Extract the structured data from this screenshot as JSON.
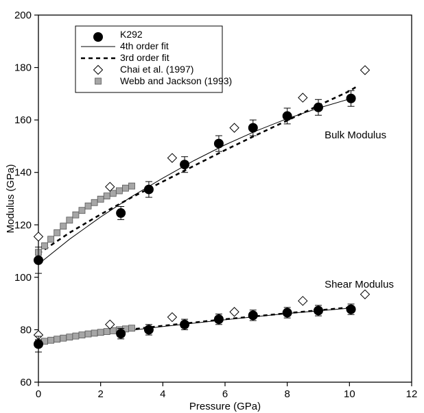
{
  "chart_data": {
    "type": "scatter",
    "xlabel": "Pressure (GPa)",
    "ylabel": "Modulus (GPa)",
    "xlim": [
      0,
      12
    ],
    "ylim": [
      60,
      200
    ],
    "xticks": [
      0,
      2,
      4,
      6,
      8,
      10,
      12
    ],
    "yticks": [
      60,
      80,
      100,
      120,
      140,
      160,
      180,
      200
    ],
    "grid": false,
    "legend_position": "top-left",
    "annotations": [
      {
        "text": "Bulk Modulus",
        "x": 9.2,
        "y": 153
      },
      {
        "text": "Shear Modulus",
        "x": 9.2,
        "y": 96
      }
    ],
    "series": [
      {
        "name": "K292",
        "marker": "filled-circle",
        "color": "#000000",
        "groups": [
          {
            "label": "Bulk Modulus",
            "x": [
              0.0,
              2.65,
              3.55,
              4.7,
              5.8,
              6.9,
              8.0,
              9.0,
              10.05
            ],
            "y": [
              106.5,
              124.5,
              133.5,
              143.0,
              151.0,
              157.0,
              161.5,
              164.8,
              168.2
            ],
            "err": [
              5.0,
              2.5,
              3.0,
              3.0,
              3.0,
              3.0,
              3.0,
              3.0,
              3.0
            ]
          },
          {
            "label": "Shear Modulus",
            "x": [
              0.0,
              2.65,
              3.55,
              4.7,
              5.8,
              6.9,
              8.0,
              9.0,
              10.05
            ],
            "y": [
              74.5,
              78.5,
              80.0,
              82.0,
              84.0,
              85.5,
              86.5,
              87.3,
              87.8
            ],
            "err": [
              3.0,
              2.0,
              2.0,
              2.0,
              2.0,
              2.0,
              2.0,
              2.0,
              2.0
            ]
          }
        ]
      },
      {
        "name": "4th order fit",
        "style": "solid-line",
        "color": "#000000",
        "groups": [
          {
            "label": "Bulk Modulus",
            "x": [
              0,
              1,
              2,
              3,
              4,
              5,
              6,
              7,
              8,
              9,
              10
            ],
            "y": [
              105.0,
              114.5,
              123.0,
              130.8,
              137.8,
              144.5,
              150.5,
              155.8,
              160.5,
              164.5,
              168.0
            ]
          },
          {
            "label": "Shear Modulus",
            "x": [
              0,
              2,
              4,
              6,
              8,
              10
            ],
            "y": [
              75.0,
              78.4,
              81.2,
              83.8,
              86.2,
              88.2
            ]
          }
        ]
      },
      {
        "name": "3rd order fit",
        "style": "dashed-line",
        "color": "#000000",
        "groups": [
          {
            "label": "Bulk Modulus",
            "x": [
              0,
              1,
              2,
              3,
              4,
              5,
              6,
              7,
              8,
              9,
              10,
              10.2
            ],
            "y": [
              109.0,
              117.0,
              124.0,
              130.5,
              136.5,
              142.5,
              148.5,
              154.2,
              159.8,
              165.5,
              171.0,
              172.5
            ]
          },
          {
            "label": "Shear Modulus",
            "x": [
              0,
              2,
              4,
              6,
              8,
              10
            ],
            "y": [
              75.5,
              78.8,
              81.5,
              84.0,
              86.3,
              88.5
            ]
          }
        ]
      },
      {
        "name": "Chai et al. (1997)",
        "marker": "open-diamond",
        "color": "#000000",
        "groups": [
          {
            "label": "Bulk Modulus",
            "x": [
              0.0,
              2.3,
              4.3,
              6.3,
              8.5,
              10.5
            ],
            "y": [
              115.5,
              134.5,
              145.5,
              157.0,
              168.5,
              179.0
            ]
          },
          {
            "label": "Shear Modulus",
            "x": [
              0.0,
              2.3,
              4.3,
              6.3,
              8.5,
              10.5
            ],
            "y": [
              78.0,
              82.0,
              84.8,
              86.8,
              91.0,
              93.5
            ]
          }
        ]
      },
      {
        "name": "Webb and Jackson (1993)",
        "marker": "gray-square",
        "color": "#9a9a9a",
        "groups": [
          {
            "label": "Bulk Modulus",
            "x": [
              0.0,
              0.2,
              0.4,
              0.6,
              0.8,
              1.0,
              1.2,
              1.4,
              1.6,
              1.8,
              2.0,
              2.2,
              2.4,
              2.6,
              2.8,
              3.0
            ],
            "y": [
              109.5,
              112.0,
              114.5,
              117.0,
              119.5,
              121.8,
              123.8,
              125.5,
              127.2,
              128.5,
              129.8,
              131.0,
              132.0,
              133.0,
              134.0,
              134.8
            ]
          },
          {
            "label": "Shear Modulus",
            "x": [
              0.0,
              0.2,
              0.4,
              0.6,
              0.8,
              1.0,
              1.2,
              1.4,
              1.6,
              1.8,
              2.0,
              2.2,
              2.4,
              2.6,
              2.8,
              3.0
            ],
            "y": [
              75.2,
              75.6,
              76.0,
              76.4,
              76.8,
              77.2,
              77.6,
              78.0,
              78.4,
              78.7,
              79.0,
              79.3,
              79.6,
              80.0,
              80.3,
              80.6
            ]
          }
        ]
      }
    ]
  }
}
